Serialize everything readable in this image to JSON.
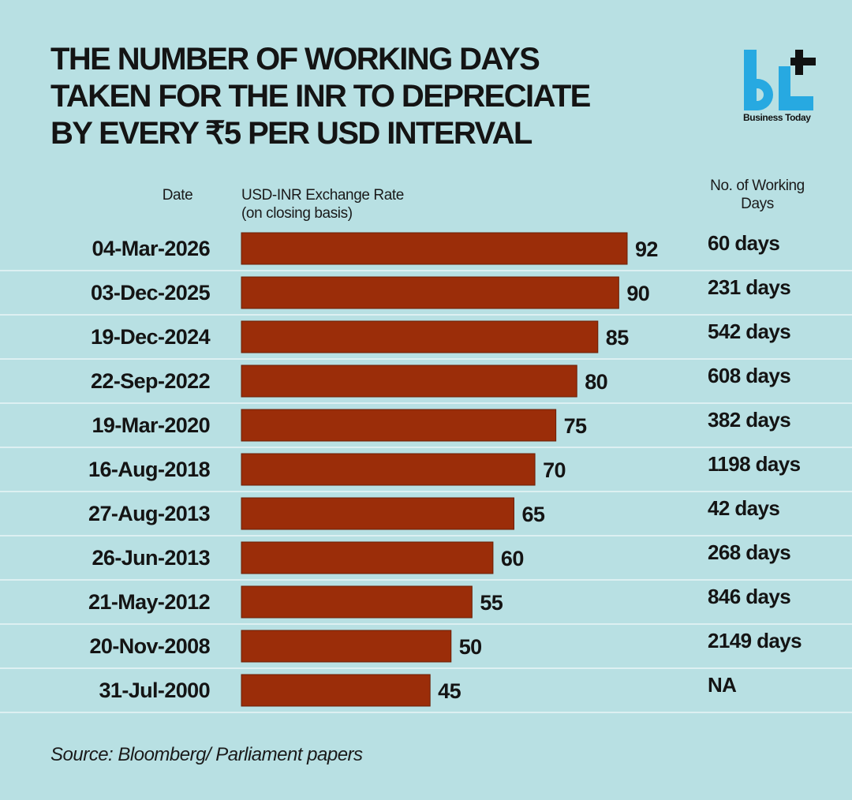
{
  "title_lines": [
    "THE NUMBER OF WORKING DAYS",
    "TAKEN FOR THE INR TO DEPRECIATE",
    "BY EVERY ₹5 PER USD INTERVAL"
  ],
  "logo": {
    "brand": "bt",
    "name": "Business Today",
    "colors": {
      "letters": "#27a9e1",
      "mark": "#111111"
    }
  },
  "headers": {
    "date": "Date",
    "rate_line1": "USD-INR Exchange Rate",
    "rate_line2": "(on closing basis)",
    "days_line1": "No. of Working",
    "days_line2": "Days"
  },
  "source": "Source: Bloomberg/ Parliament papers",
  "colors": {
    "background": "#b8e0e3",
    "bar": "#9b2d09",
    "divider": "#e9f6f7"
  },
  "chart_data": {
    "type": "bar",
    "orientation": "horizontal",
    "title": "THE NUMBER OF WORKING DAYS TAKEN FOR THE INR TO DEPRECIATE BY EVERY ₹5 PER USD INTERVAL",
    "xlabel": "USD-INR Exchange Rate (on closing basis)",
    "ylabel": "Date",
    "categories": [
      "04-Mar-2026",
      "03-Dec-2025",
      "19-Dec-2024",
      "22-Sep-2022",
      "19-Mar-2020",
      "16-Aug-2018",
      "27-Aug-2013",
      "26-Jun-2013",
      "21-May-2012",
      "20-Nov-2008",
      "31-Jul-2000"
    ],
    "values": [
      92,
      90,
      85,
      80,
      75,
      70,
      65,
      60,
      55,
      50,
      45
    ],
    "working_days": [
      "60 days",
      "231 days",
      "542 days",
      "608 days",
      "382 days",
      "1198 days",
      "42 days",
      "268 days",
      "846 days",
      "2149 days",
      "NA"
    ],
    "grid": false,
    "legend": "none"
  }
}
